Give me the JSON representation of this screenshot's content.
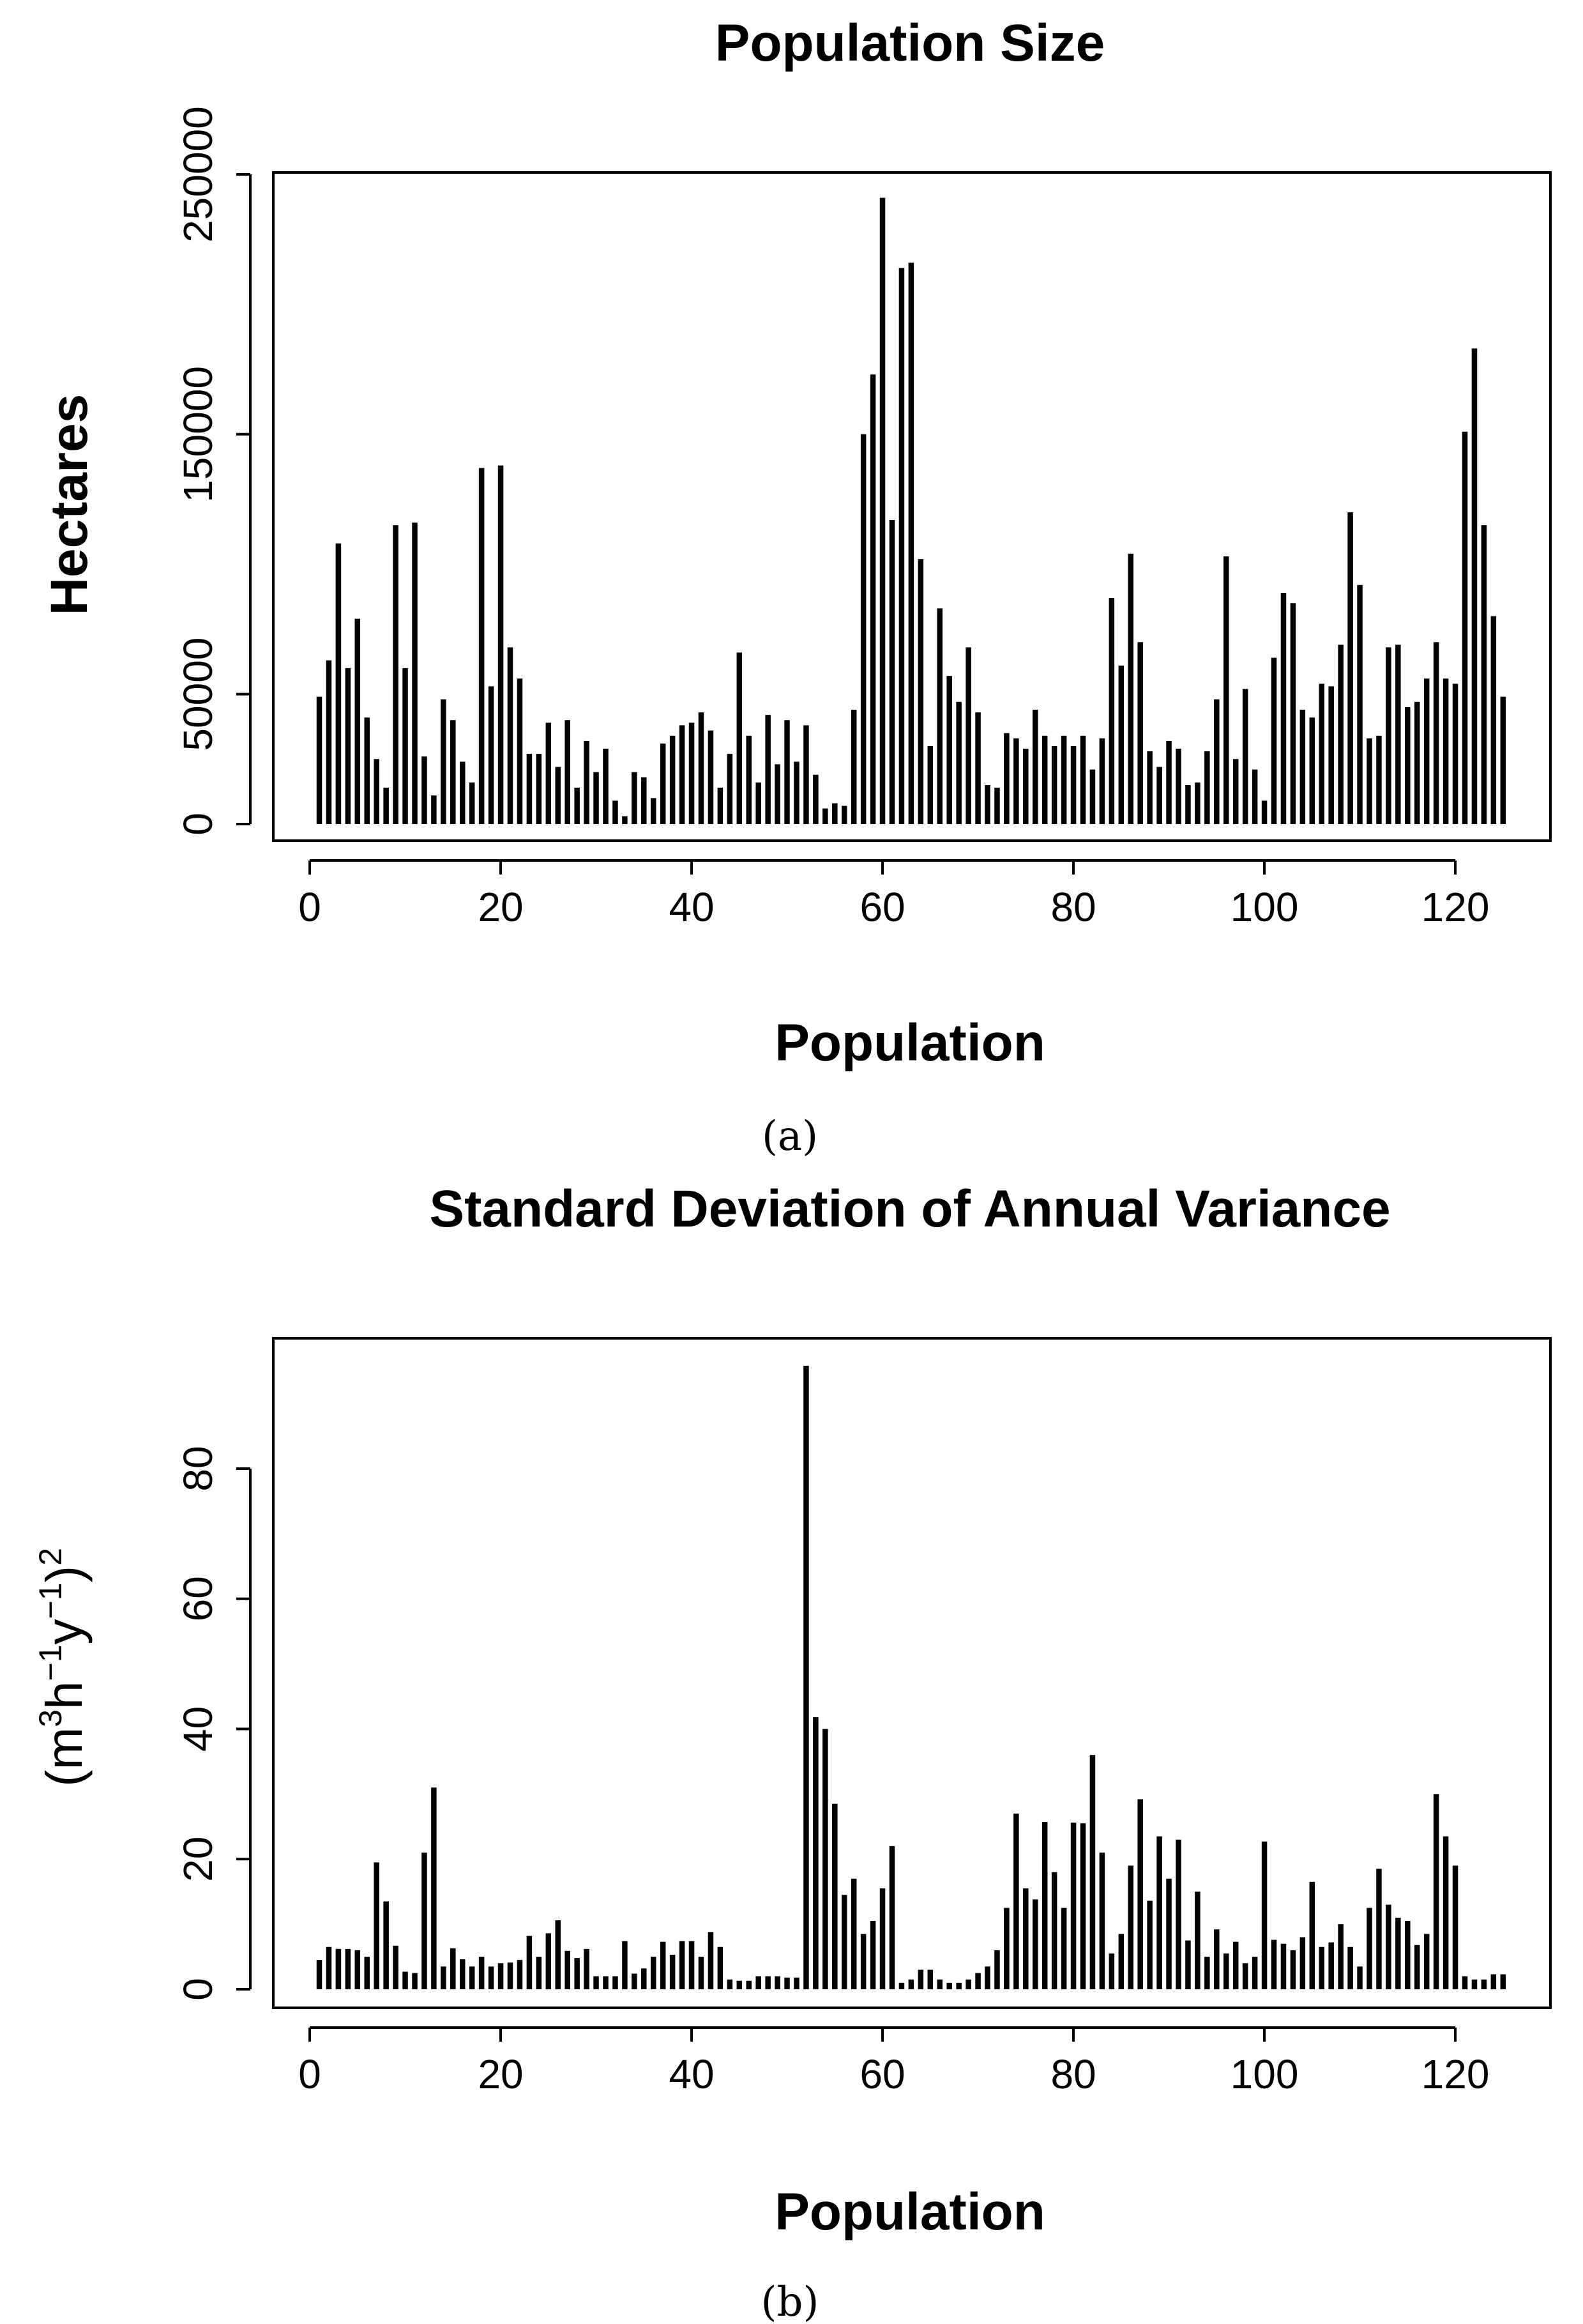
{
  "chart_data": [
    {
      "type": "bar",
      "title": "Population Size",
      "xlabel": "Population",
      "ylabel": "Hectares",
      "caption": "(a)",
      "xlim": [
        1,
        125
      ],
      "ylim": [
        0,
        250000
      ],
      "xticks": [
        0,
        20,
        40,
        60,
        80,
        100,
        120
      ],
      "yticks": [
        0,
        50000,
        150000,
        250000
      ],
      "x": [
        1,
        2,
        3,
        4,
        5,
        6,
        7,
        8,
        9,
        10,
        11,
        12,
        13,
        14,
        15,
        16,
        17,
        18,
        19,
        20,
        21,
        22,
        23,
        24,
        25,
        26,
        27,
        28,
        29,
        30,
        31,
        32,
        33,
        34,
        35,
        36,
        37,
        38,
        39,
        40,
        41,
        42,
        43,
        44,
        45,
        46,
        47,
        48,
        49,
        50,
        51,
        52,
        53,
        54,
        55,
        56,
        57,
        58,
        59,
        60,
        61,
        62,
        63,
        64,
        65,
        66,
        67,
        68,
        69,
        70,
        71,
        72,
        73,
        74,
        75,
        76,
        77,
        78,
        79,
        80,
        81,
        82,
        83,
        84,
        85,
        86,
        87,
        88,
        89,
        90,
        91,
        92,
        93,
        94,
        95,
        96,
        97,
        98,
        99,
        100,
        101,
        102,
        103,
        104,
        105,
        106,
        107,
        108,
        109,
        110,
        111,
        112,
        113,
        114,
        115,
        116,
        117,
        118,
        119,
        120,
        121,
        122,
        123,
        124,
        125
      ],
      "values": [
        49000,
        63000,
        108000,
        60000,
        79000,
        41000,
        25000,
        14000,
        115000,
        60000,
        116000,
        26000,
        11000,
        48000,
        40000,
        24000,
        16000,
        137000,
        53000,
        138000,
        68000,
        56000,
        27000,
        27000,
        39000,
        22000,
        40000,
        14000,
        32000,
        20000,
        29000,
        9000,
        3000,
        20000,
        18000,
        10000,
        31000,
        34000,
        38000,
        39000,
        43000,
        36000,
        14000,
        27000,
        66000,
        34000,
        16000,
        42000,
        23000,
        40000,
        24000,
        38000,
        19000,
        6000,
        8000,
        7000,
        44000,
        150000,
        173000,
        241000,
        117000,
        214000,
        216000,
        102000,
        30000,
        83000,
        57000,
        47000,
        68000,
        43000,
        15000,
        14000,
        35000,
        33000,
        29000,
        44000,
        34000,
        30000,
        34000,
        30000,
        34000,
        21000,
        33000,
        87000,
        61000,
        104000,
        70000,
        28000,
        22000,
        32000,
        29000,
        15000,
        16000,
        28000,
        48000,
        103000,
        25000,
        52000,
        21000,
        9000,
        64000,
        89000,
        85000,
        44000,
        41000,
        54000,
        53000,
        69000,
        120000,
        92000,
        33000,
        34000,
        68000,
        69000,
        45000,
        47000,
        56000,
        70000,
        56000,
        54000,
        151000,
        183000,
        115000,
        80000,
        49000
      ]
    },
    {
      "type": "bar",
      "title": "Standard Deviation of Annual Variance",
      "xlabel": "Population",
      "ylabel": "(m3h-1y-1)2",
      "ylabel_parts": {
        "open": "(m",
        "sup1": "3",
        "h": "h",
        "sup2": "−1",
        "y": "y",
        "sup3": "−1",
        "close": ")",
        "sup4": "2"
      },
      "caption": "(b)",
      "xlim": [
        1,
        125
      ],
      "ylim": [
        0,
        96
      ],
      "xticks": [
        0,
        20,
        40,
        60,
        80,
        100,
        120
      ],
      "yticks": [
        0,
        20,
        40,
        60,
        80
      ],
      "x": [
        1,
        2,
        3,
        4,
        5,
        6,
        7,
        8,
        9,
        10,
        11,
        12,
        13,
        14,
        15,
        16,
        17,
        18,
        19,
        20,
        21,
        22,
        23,
        24,
        25,
        26,
        27,
        28,
        29,
        30,
        31,
        32,
        33,
        34,
        35,
        36,
        37,
        38,
        39,
        40,
        41,
        42,
        43,
        44,
        45,
        46,
        47,
        48,
        49,
        50,
        51,
        52,
        53,
        54,
        55,
        56,
        57,
        58,
        59,
        60,
        61,
        62,
        63,
        64,
        65,
        66,
        67,
        68,
        69,
        70,
        71,
        72,
        73,
        74,
        75,
        76,
        77,
        78,
        79,
        80,
        81,
        82,
        83,
        84,
        85,
        86,
        87,
        88,
        89,
        90,
        91,
        92,
        93,
        94,
        95,
        96,
        97,
        98,
        99,
        100,
        101,
        102,
        103,
        104,
        105,
        106,
        107,
        108,
        109,
        110,
        111,
        112,
        113,
        114,
        115,
        116,
        117,
        118,
        119,
        120,
        121,
        122,
        123,
        124,
        125
      ],
      "values": [
        4.5,
        6.5,
        6.2,
        6.2,
        6.0,
        5.0,
        19.5,
        13.5,
        6.7,
        2.7,
        2.5,
        21,
        31,
        3.5,
        6.3,
        4.6,
        3.5,
        5.0,
        3.5,
        4.0,
        4.1,
        4.5,
        8.2,
        5.0,
        8.6,
        10.6,
        5.9,
        4.8,
        6.2,
        2.0,
        2.0,
        2.0,
        7.4,
        2.4,
        3.2,
        5.0,
        7.3,
        5.3,
        7.4,
        7.4,
        5.0,
        8.8,
        6.5,
        1.5,
        1.3,
        1.3,
        2.0,
        2.0,
        2.0,
        1.8,
        1.8,
        95.8,
        41.8,
        40.0,
        28.5,
        14.5,
        17.0,
        8.5,
        10.5,
        15.5,
        22.0,
        1.0,
        1.5,
        3.0,
        3.0,
        1.5,
        1.0,
        1.0,
        1.5,
        2.5,
        3.5,
        6.0,
        12.5,
        27.0,
        15.5,
        13.8,
        25.7,
        18.0,
        12.5,
        25.6,
        25.5,
        36.0,
        21.0,
        5.5,
        8.5,
        19.0,
        29.2,
        13.6,
        23.5,
        17.0,
        23.0,
        7.5,
        15.0,
        5.0,
        9.2,
        5.5,
        7.3,
        4.0,
        5.0,
        22.7,
        7.6,
        7.0,
        6.0,
        8.0,
        16.5,
        6.5,
        7.2,
        10.0,
        6.5,
        3.5,
        12.5,
        18.5,
        13.0,
        11.0,
        10.5,
        6.8,
        8.5,
        30.0,
        23.5,
        19.0,
        2.0,
        1.5,
        1.5,
        2.3,
        2.3
      ]
    }
  ]
}
